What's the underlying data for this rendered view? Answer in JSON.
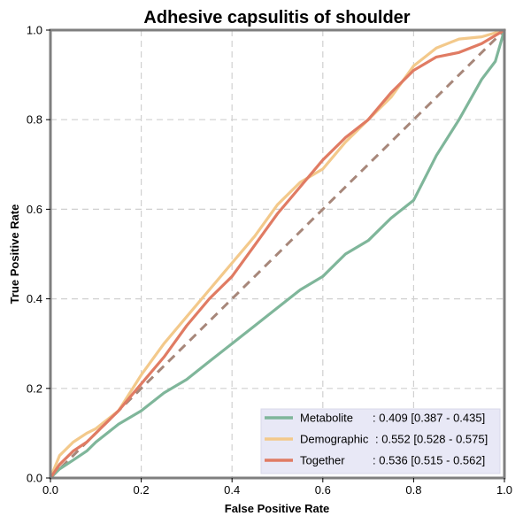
{
  "chart_data": {
    "type": "line",
    "title": "Adhesive capsulitis of shoulder",
    "xlabel": "False Positive Rate",
    "ylabel": "True Positive Rate",
    "xlim": [
      0,
      1
    ],
    "ylim": [
      0,
      1
    ],
    "xticks": [
      "0.0",
      "0.2",
      "0.4",
      "0.6",
      "0.8",
      "1.0"
    ],
    "yticks": [
      "0.0",
      "0.2",
      "0.4",
      "0.6",
      "0.8",
      "1.0"
    ],
    "grid": true,
    "legend_position": "bottom-right",
    "diagonal": {
      "color": "#a7877a",
      "style": "dashed",
      "x": [
        0,
        1
      ],
      "y": [
        0,
        1
      ]
    },
    "series": [
      {
        "name": "Metabolite",
        "stat": ": 0.409 [0.387 - 0.435]",
        "color": "#7fb69a",
        "x": [
          0,
          0.02,
          0.05,
          0.08,
          0.1,
          0.15,
          0.2,
          0.25,
          0.3,
          0.35,
          0.4,
          0.45,
          0.5,
          0.55,
          0.6,
          0.65,
          0.7,
          0.75,
          0.8,
          0.85,
          0.9,
          0.95,
          0.98,
          1.0
        ],
        "y": [
          0,
          0.02,
          0.04,
          0.06,
          0.08,
          0.12,
          0.15,
          0.19,
          0.22,
          0.26,
          0.3,
          0.34,
          0.38,
          0.42,
          0.45,
          0.5,
          0.53,
          0.58,
          0.62,
          0.72,
          0.8,
          0.89,
          0.93,
          1.0
        ]
      },
      {
        "name": "Demographic",
        "stat": ": 0.552 [0.528 - 0.575]",
        "color": "#f3c98b",
        "x": [
          0,
          0.02,
          0.05,
          0.08,
          0.1,
          0.15,
          0.2,
          0.25,
          0.3,
          0.35,
          0.4,
          0.45,
          0.5,
          0.55,
          0.6,
          0.65,
          0.7,
          0.75,
          0.8,
          0.85,
          0.9,
          0.95,
          1.0
        ],
        "y": [
          0,
          0.05,
          0.08,
          0.1,
          0.11,
          0.15,
          0.23,
          0.3,
          0.36,
          0.42,
          0.48,
          0.54,
          0.61,
          0.66,
          0.69,
          0.75,
          0.8,
          0.85,
          0.92,
          0.96,
          0.98,
          0.985,
          1.0
        ]
      },
      {
        "name": "Together",
        "stat": ": 0.536 [0.515 - 0.562]",
        "color": "#e07b63",
        "x": [
          0,
          0.02,
          0.05,
          0.08,
          0.1,
          0.15,
          0.2,
          0.25,
          0.3,
          0.35,
          0.4,
          0.45,
          0.5,
          0.55,
          0.6,
          0.65,
          0.7,
          0.75,
          0.8,
          0.85,
          0.9,
          0.95,
          1.0
        ],
        "y": [
          0,
          0.03,
          0.06,
          0.08,
          0.1,
          0.15,
          0.21,
          0.27,
          0.34,
          0.4,
          0.45,
          0.52,
          0.59,
          0.65,
          0.71,
          0.76,
          0.8,
          0.86,
          0.91,
          0.94,
          0.95,
          0.97,
          1.0
        ]
      }
    ]
  }
}
